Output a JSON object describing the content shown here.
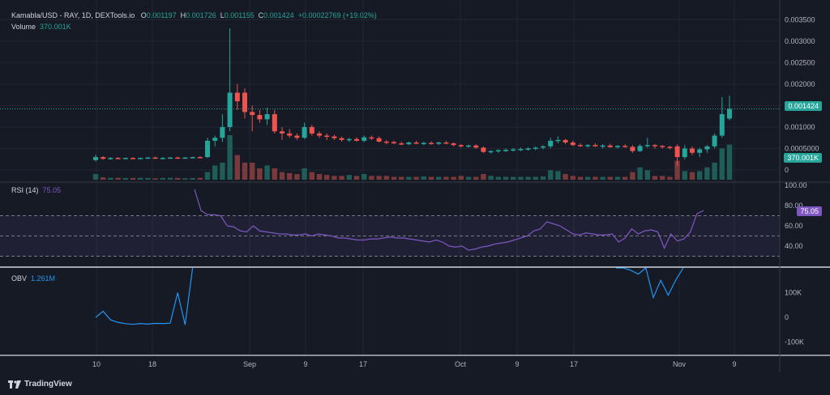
{
  "header": {
    "symbol": "Kamabla/USD - RAY, 1D, DEXTools.io",
    "o_label": "O",
    "o_val": "0.001197",
    "h_label": "H",
    "h_val": "0.001726",
    "l_label": "L",
    "l_val": "0.001155",
    "c_label": "C",
    "c_val": "0.001424",
    "change": "+0.00022769 (+19.02%)",
    "volume_label": "Volume",
    "volume_val": "370.001K"
  },
  "rsi": {
    "label": "RSI (14)",
    "value": "75.05"
  },
  "obv": {
    "label": "OBV",
    "value": "1.261M"
  },
  "price_badge": "0.001424",
  "volume_badge": "370.001K",
  "rsi_badge": "75.05",
  "branding": "TradingView",
  "colors": {
    "bg": "#161a25",
    "up": "#26a69a",
    "down": "#ef5350",
    "rsi": "#7e57c2",
    "obv": "#2196f3"
  },
  "chart_data": [
    {
      "type": "candlestick",
      "panel": "price",
      "price_axis": [
        "0.003500",
        "0.003000",
        "0.002500",
        "0.002000",
        "0.001500",
        "0.001000",
        "0.0005000",
        "0"
      ],
      "ylim": [
        0,
        0.0036
      ],
      "last_price": 0.001424,
      "time_axis": [
        "10",
        "18",
        "Sep",
        "9",
        "17",
        "Oct",
        "9",
        "17",
        "Nov",
        "9"
      ],
      "ohlc": [
        [
          0.00023,
          0.00035,
          0.0002,
          0.0003
        ],
        [
          0.0003,
          0.00032,
          0.00024,
          0.00026
        ],
        [
          0.00026,
          0.0003,
          0.00024,
          0.00028
        ],
        [
          0.00028,
          0.0003,
          0.00025,
          0.00027
        ],
        [
          0.00027,
          0.00029,
          0.00025,
          0.00028
        ],
        [
          0.00028,
          0.0003,
          0.00026,
          0.00027
        ],
        [
          0.00027,
          0.00029,
          0.00025,
          0.00028
        ],
        [
          0.00028,
          0.0003,
          0.00026,
          0.00029
        ],
        [
          0.00029,
          0.00031,
          0.00026,
          0.00027
        ],
        [
          0.00027,
          0.0003,
          0.00025,
          0.00028
        ],
        [
          0.00028,
          0.0003,
          0.00026,
          0.00029
        ],
        [
          0.00029,
          0.00031,
          0.00027,
          0.00028
        ],
        [
          0.00028,
          0.0003,
          0.00026,
          0.00029
        ],
        [
          0.00029,
          0.00031,
          0.00027,
          0.0003
        ],
        [
          0.0003,
          0.00032,
          0.00028,
          0.00029
        ],
        [
          0.0003,
          0.00075,
          0.00028,
          0.00068
        ],
        [
          0.00068,
          0.0008,
          0.00055,
          0.00075
        ],
        [
          0.00075,
          0.0013,
          0.00065,
          0.001
        ],
        [
          0.001,
          0.0033,
          0.0009,
          0.0018
        ],
        [
          0.0018,
          0.002,
          0.0014,
          0.0016
        ],
        [
          0.0018,
          0.0019,
          0.0012,
          0.00135
        ],
        [
          0.00135,
          0.0015,
          0.0009,
          0.00128
        ],
        [
          0.00128,
          0.0014,
          0.0011,
          0.00118
        ],
        [
          0.00118,
          0.00145,
          0.00105,
          0.0013
        ],
        [
          0.0013,
          0.0014,
          0.00085,
          0.0009
        ],
        [
          0.0009,
          0.001,
          0.0007,
          0.00085
        ],
        [
          0.00085,
          0.00095,
          0.00075,
          0.0008
        ],
        [
          0.0008,
          0.00085,
          0.0007,
          0.00075
        ],
        [
          0.00075,
          0.0011,
          0.00072,
          0.001
        ],
        [
          0.001,
          0.00105,
          0.0008,
          0.00085
        ],
        [
          0.00085,
          0.0009,
          0.00075,
          0.0008
        ],
        [
          0.0008,
          0.00085,
          0.0007,
          0.00078
        ],
        [
          0.00078,
          0.00082,
          0.0007,
          0.00074
        ],
        [
          0.00074,
          0.00078,
          0.00066,
          0.0007
        ],
        [
          0.0007,
          0.00075,
          0.00065,
          0.00072
        ],
        [
          0.00072,
          0.00076,
          0.00066,
          0.00068
        ],
        [
          0.00068,
          0.0008,
          0.00065,
          0.00076
        ],
        [
          0.00076,
          0.0008,
          0.0007,
          0.00074
        ],
        [
          0.00074,
          0.00078,
          0.00064,
          0.00066
        ],
        [
          0.00066,
          0.0007,
          0.0006,
          0.00065
        ],
        [
          0.00065,
          0.00068,
          0.0006,
          0.00062
        ],
        [
          0.00062,
          0.00066,
          0.00058,
          0.0006
        ],
        [
          0.0006,
          0.00066,
          0.00058,
          0.00064
        ],
        [
          0.00064,
          0.00068,
          0.0006,
          0.00062
        ],
        [
          0.00062,
          0.00066,
          0.00058,
          0.00063
        ],
        [
          0.00063,
          0.00067,
          0.00059,
          0.00061
        ],
        [
          0.00061,
          0.00066,
          0.00058,
          0.00064
        ],
        [
          0.00064,
          0.00068,
          0.0006,
          0.00062
        ],
        [
          0.00062,
          0.00064,
          0.00055,
          0.00058
        ],
        [
          0.00058,
          0.0006,
          0.00052,
          0.00055
        ],
        [
          0.00055,
          0.00059,
          0.00052,
          0.00057
        ],
        [
          0.00057,
          0.0006,
          0.0005,
          0.00052
        ],
        [
          0.00052,
          0.00055,
          0.0004,
          0.00042
        ],
        [
          0.00042,
          0.00046,
          0.00038,
          0.00044
        ],
        [
          0.00044,
          0.00048,
          0.0004,
          0.00046
        ],
        [
          0.00046,
          0.0005,
          0.00042,
          0.00047
        ],
        [
          0.00047,
          0.00051,
          0.00043,
          0.00048
        ],
        [
          0.00048,
          0.00052,
          0.00044,
          0.00049
        ],
        [
          0.00049,
          0.00053,
          0.00045,
          0.0005
        ],
        [
          0.0005,
          0.00055,
          0.00046,
          0.00052
        ],
        [
          0.00052,
          0.00058,
          0.00048,
          0.00055
        ],
        [
          0.00055,
          0.00075,
          0.0005,
          0.00068
        ],
        [
          0.00068,
          0.00078,
          0.00062,
          0.0007
        ],
        [
          0.0007,
          0.00072,
          0.0006,
          0.00064
        ],
        [
          0.00064,
          0.00068,
          0.00056,
          0.00058
        ],
        [
          0.00058,
          0.00062,
          0.00054,
          0.00056
        ],
        [
          0.00056,
          0.0006,
          0.00052,
          0.00058
        ],
        [
          0.00058,
          0.00062,
          0.00054,
          0.00055
        ],
        [
          0.00055,
          0.0006,
          0.0005,
          0.00057
        ],
        [
          0.00057,
          0.00061,
          0.00052,
          0.00053
        ],
        [
          0.00053,
          0.00058,
          0.0005,
          0.00056
        ],
        [
          0.00056,
          0.0006,
          0.00052,
          0.00054
        ],
        [
          0.00054,
          0.00058,
          0.0004,
          0.00044
        ],
        [
          0.00044,
          0.0006,
          0.00042,
          0.00056
        ],
        [
          0.00056,
          0.00075,
          0.00052,
          0.00058
        ],
        [
          0.00058,
          0.0006,
          0.0005,
          0.00056
        ],
        [
          0.00056,
          0.00058,
          0.0005,
          0.00054
        ],
        [
          0.00054,
          0.00056,
          0.00048,
          0.00052
        ],
        [
          0.00055,
          0.0006,
          0.0001,
          0.0003
        ],
        [
          0.0003,
          0.00058,
          0.00025,
          0.0005
        ],
        [
          0.0005,
          0.00055,
          0.00035,
          0.0004
        ],
        [
          0.0004,
          0.00052,
          0.0003,
          0.00048
        ],
        [
          0.00048,
          0.00058,
          0.0004,
          0.00055
        ],
        [
          0.00055,
          0.00085,
          0.0005,
          0.0008
        ],
        [
          0.0008,
          0.0017,
          0.00075,
          0.0013
        ],
        [
          0.001197,
          0.001726,
          0.001155,
          0.001424
        ]
      ],
      "volume": [
        60,
        25,
        20,
        20,
        18,
        18,
        20,
        18,
        15,
        18,
        20,
        18,
        15,
        18,
        20,
        80,
        150,
        180,
        470,
        260,
        180,
        180,
        120,
        150,
        120,
        80,
        70,
        60,
        120,
        80,
        60,
        50,
        40,
        40,
        50,
        40,
        60,
        40,
        40,
        40,
        30,
        30,
        30,
        30,
        35,
        30,
        30,
        30,
        30,
        40,
        30,
        30,
        60,
        40,
        30,
        30,
        30,
        30,
        30,
        30,
        35,
        100,
        90,
        60,
        40,
        30,
        30,
        30,
        30,
        30,
        30,
        30,
        80,
        130,
        100,
        40,
        40,
        30,
        200,
        90,
        80,
        90,
        130,
        180,
        330,
        370
      ]
    },
    {
      "type": "line",
      "panel": "RSI (14)",
      "ylim": [
        20,
        100
      ],
      "levels": [
        70,
        50,
        30
      ],
      "y_axis": [
        "100.00",
        "80.00",
        "60.00",
        "40.00"
      ],
      "values": [
        96,
        75,
        71,
        71,
        70,
        60,
        59,
        55,
        54,
        60,
        55,
        54,
        53,
        52,
        52,
        51,
        51,
        52,
        50,
        52,
        51,
        50,
        48,
        48,
        47,
        46,
        46,
        47,
        47,
        48,
        49,
        48,
        48,
        47,
        46,
        45,
        44,
        46,
        44,
        40,
        39,
        40,
        36,
        37,
        39,
        40,
        42,
        43,
        44,
        46,
        48,
        50,
        55,
        57,
        64,
        62,
        60,
        56,
        52,
        51,
        53,
        52,
        51,
        51,
        52,
        44,
        48,
        57,
        52,
        55,
        56,
        54,
        38,
        52,
        45,
        47,
        54,
        72,
        75.05
      ]
    },
    {
      "type": "line",
      "panel": "OBV",
      "y_axis": [
        "100K",
        "0",
        "-100K"
      ],
      "ylim": [
        -150,
        200
      ],
      "values": [
        0,
        25,
        -10,
        -20,
        -25,
        -28,
        -25,
        -27,
        -24,
        -25,
        -23,
        100,
        -30,
        250
      ],
      "tail_values": [
        205,
        210,
        190,
        175,
        220,
        80,
        150,
        90,
        150,
        205
      ]
    }
  ]
}
